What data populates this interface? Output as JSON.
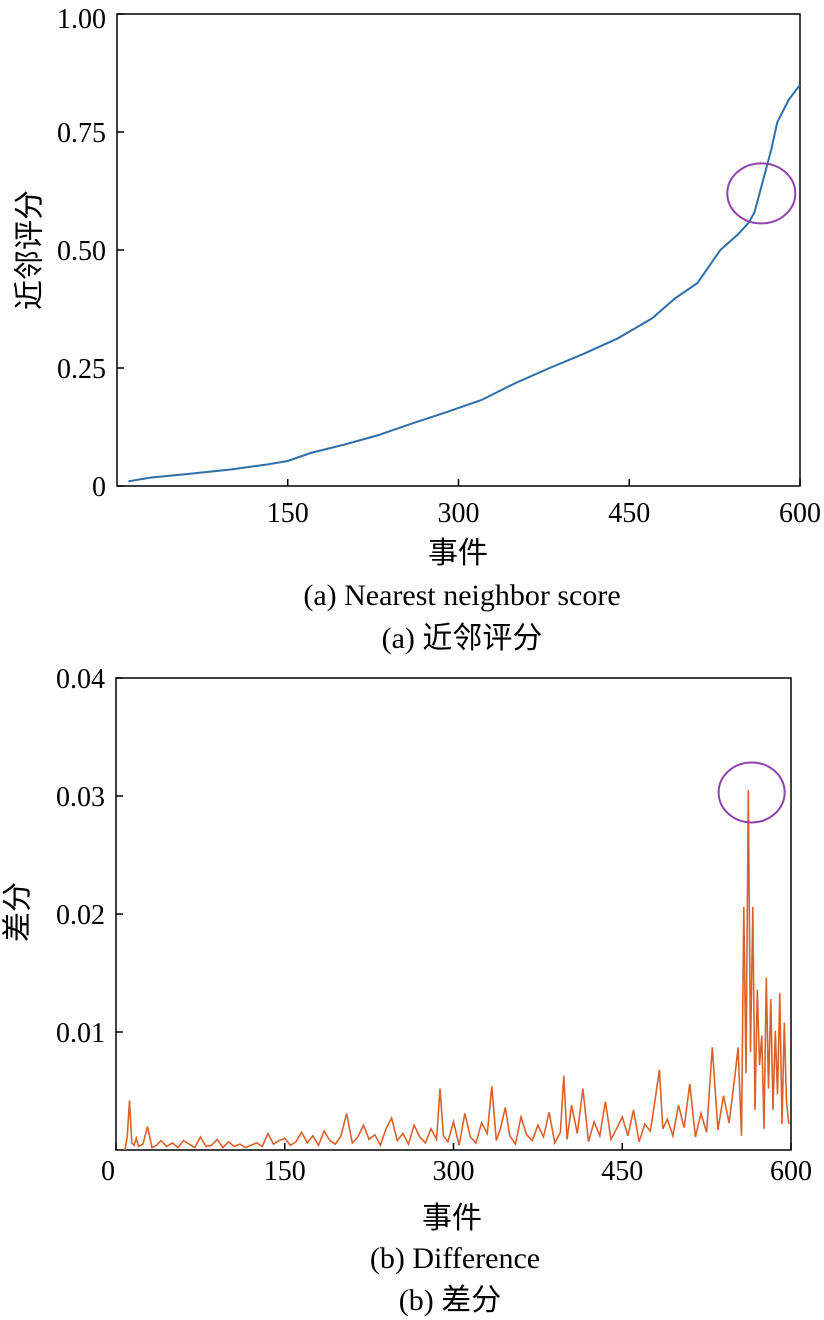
{
  "chart_data": [
    {
      "type": "line",
      "xlabel": "事件",
      "ylabel": "近邻评分",
      "caption_en": "(a) Nearest neighbor score",
      "caption_zh": "(a) 近邻评分",
      "xlim": [
        0,
        600
      ],
      "ylim": [
        0,
        1.0
      ],
      "xticks": [
        150,
        300,
        450,
        600
      ],
      "xtick_labels": [
        "150",
        "300",
        "450",
        "600"
      ],
      "yticks": [
        0,
        0.25,
        0.5,
        0.75,
        1.0
      ],
      "ytick_labels": [
        "0",
        "0.25",
        "0.50",
        "0.75",
        "1.00"
      ],
      "grid": false,
      "series": [
        {
          "color": "#2f6fa7",
          "x": [
            10,
            30,
            60,
            100,
            130,
            150,
            170,
            200,
            230,
            260,
            290,
            320,
            350,
            380,
            410,
            440,
            470,
            490,
            510,
            530,
            545,
            555,
            560,
            565,
            570,
            575,
            580,
            590,
            600
          ],
          "y": [
            0.01,
            0.018,
            0.025,
            0.035,
            0.045,
            0.053,
            0.07,
            0.088,
            0.108,
            0.133,
            0.157,
            0.182,
            0.218,
            0.25,
            0.28,
            0.313,
            0.355,
            0.397,
            0.43,
            0.5,
            0.532,
            0.558,
            0.58,
            0.625,
            0.67,
            0.715,
            0.77,
            0.818,
            0.85
          ]
        }
      ],
      "annotation": {
        "type": "circle",
        "x": 566,
        "y": 0.62,
        "color": "#8e44ad"
      }
    },
    {
      "type": "line",
      "xlabel": "事件",
      "ylabel": "差分",
      "caption_en": "(b) Difference",
      "caption_zh": "(b) 差分",
      "xlim": [
        0,
        600
      ],
      "ylim": [
        0,
        0.04
      ],
      "xticks": [
        0,
        150,
        300,
        450,
        600
      ],
      "xtick_labels": [
        "0",
        "150",
        "300",
        "450",
        "600"
      ],
      "yticks": [
        0.01,
        0.02,
        0.03,
        0.04
      ],
      "ytick_labels": [
        "0.01",
        "0.02",
        "0.03",
        "0.04"
      ],
      "grid": false,
      "series": [
        {
          "color": "#d9622b",
          "x": [
            8,
            10,
            12,
            14,
            16,
            18,
            20,
            24,
            28,
            32,
            36,
            40,
            45,
            50,
            55,
            60,
            65,
            70,
            75,
            80,
            85,
            90,
            95,
            100,
            105,
            110,
            115,
            120,
            125,
            130,
            135,
            140,
            145,
            150,
            155,
            160,
            165,
            170,
            175,
            180,
            185,
            190,
            195,
            200,
            205,
            210,
            215,
            220,
            225,
            230,
            235,
            240,
            245,
            250,
            255,
            260,
            265,
            270,
            275,
            280,
            285,
            288,
            291,
            295,
            300,
            305,
            310,
            315,
            320,
            325,
            330,
            334,
            338,
            342,
            346,
            350,
            355,
            360,
            365,
            370,
            375,
            380,
            385,
            390,
            395,
            398,
            401,
            405,
            410,
            415,
            420,
            425,
            430,
            435,
            440,
            445,
            450,
            455,
            460,
            465,
            470,
            475,
            480,
            483,
            486,
            490,
            495,
            500,
            505,
            510,
            515,
            520,
            525,
            530,
            535,
            540,
            545,
            550,
            553,
            556,
            558,
            560,
            562,
            564,
            566,
            568,
            570,
            572,
            574,
            576,
            578,
            580,
            582,
            584,
            586,
            588,
            590,
            592,
            594,
            596,
            598
          ],
          "y": [
            0.0,
            0.0012,
            0.0042,
            0.0006,
            0.0004,
            0.001,
            0.0003,
            0.0005,
            0.002,
            0.0002,
            0.0004,
            0.0008,
            0.0003,
            0.0006,
            0.0002,
            0.0008,
            0.0005,
            0.0002,
            0.0011,
            0.0003,
            0.0004,
            0.0009,
            0.0002,
            0.0007,
            0.0003,
            0.0005,
            0.0002,
            0.0004,
            0.0006,
            0.0003,
            0.0014,
            0.0005,
            0.0008,
            0.001,
            0.0004,
            0.0007,
            0.0015,
            0.0006,
            0.0012,
            0.0004,
            0.0016,
            0.0008,
            0.0005,
            0.0012,
            0.0031,
            0.0006,
            0.0011,
            0.0021,
            0.0009,
            0.0013,
            0.0004,
            0.0018,
            0.0027,
            0.0008,
            0.0014,
            0.0005,
            0.0021,
            0.0011,
            0.0006,
            0.0018,
            0.0009,
            0.0052,
            0.0012,
            0.0007,
            0.0024,
            0.0004,
            0.0031,
            0.0011,
            0.0006,
            0.0023,
            0.0014,
            0.0054,
            0.0008,
            0.0019,
            0.0036,
            0.0012,
            0.0005,
            0.0028,
            0.0013,
            0.0008,
            0.0021,
            0.0011,
            0.0032,
            0.0006,
            0.0015,
            0.0063,
            0.0009,
            0.0038,
            0.0014,
            0.0052,
            0.0007,
            0.0024,
            0.0012,
            0.0041,
            0.0009,
            0.0018,
            0.0028,
            0.0012,
            0.0034,
            0.0007,
            0.0022,
            0.0016,
            0.0048,
            0.0068,
            0.0018,
            0.0026,
            0.0012,
            0.0038,
            0.0019,
            0.0056,
            0.0011,
            0.0031,
            0.0015,
            0.0087,
            0.0017,
            0.0046,
            0.0023,
            0.0062,
            0.0087,
            0.0012,
            0.0206,
            0.0065,
            0.0305,
            0.0083,
            0.0206,
            0.0034,
            0.0136,
            0.0072,
            0.0097,
            0.0018,
            0.0146,
            0.0052,
            0.0128,
            0.0034,
            0.0101,
            0.0047,
            0.0133,
            0.0022,
            0.0108,
            0.0041,
            0.0022
          ]
        }
      ],
      "annotation": {
        "type": "circle",
        "x": 565,
        "y": 0.0303,
        "color": "#8e44ad"
      }
    }
  ]
}
